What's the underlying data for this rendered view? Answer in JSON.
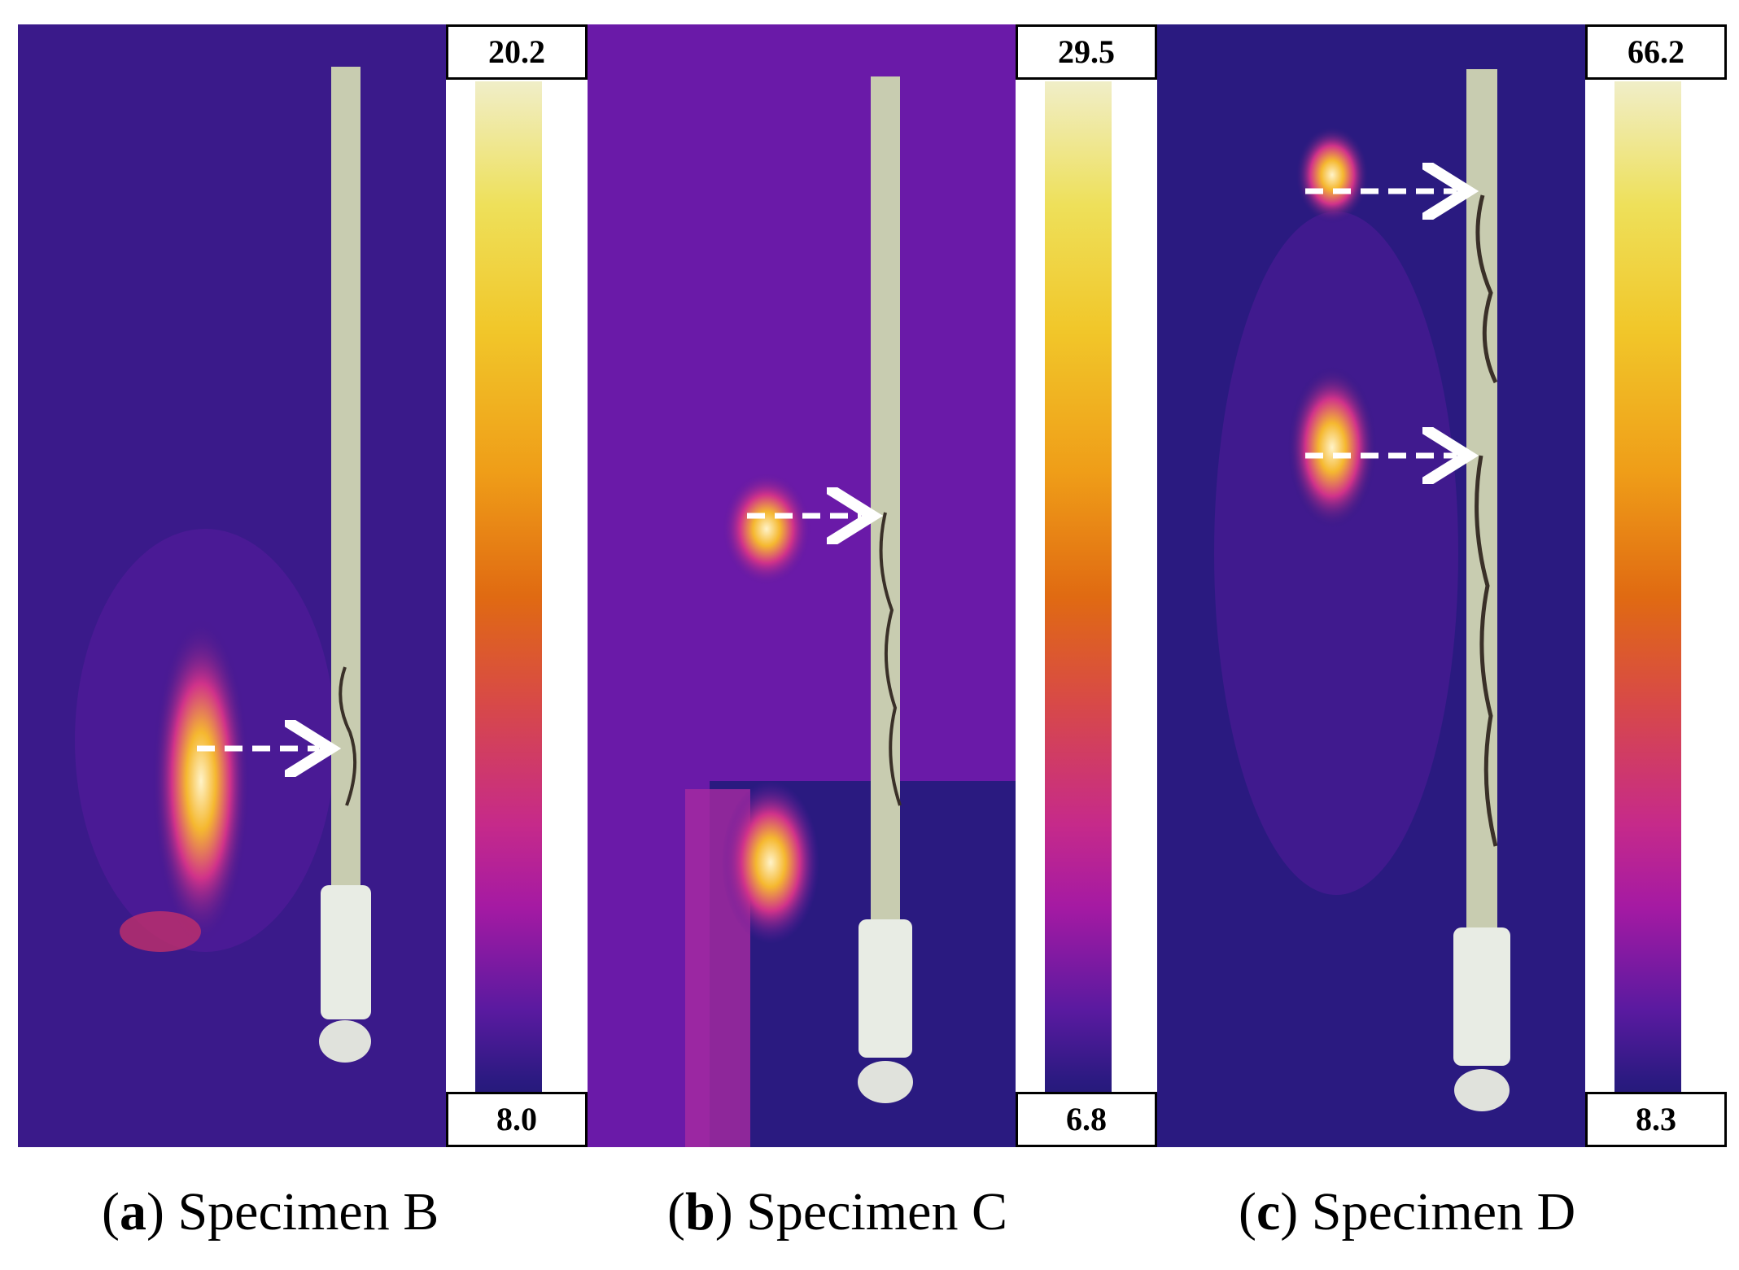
{
  "panels": [
    {
      "letter": "a",
      "caption": "Specimen B",
      "max": "20.2",
      "min": "8.0"
    },
    {
      "letter": "b",
      "caption": "Specimen C",
      "max": "29.5",
      "min": "6.8"
    },
    {
      "letter": "c",
      "caption": "Specimen D",
      "max": "66.2",
      "min": "8.3"
    }
  ],
  "colors": {
    "background": "#3a1a8a",
    "hot": "#ffe9b0",
    "rod": "#c8ccb0"
  }
}
